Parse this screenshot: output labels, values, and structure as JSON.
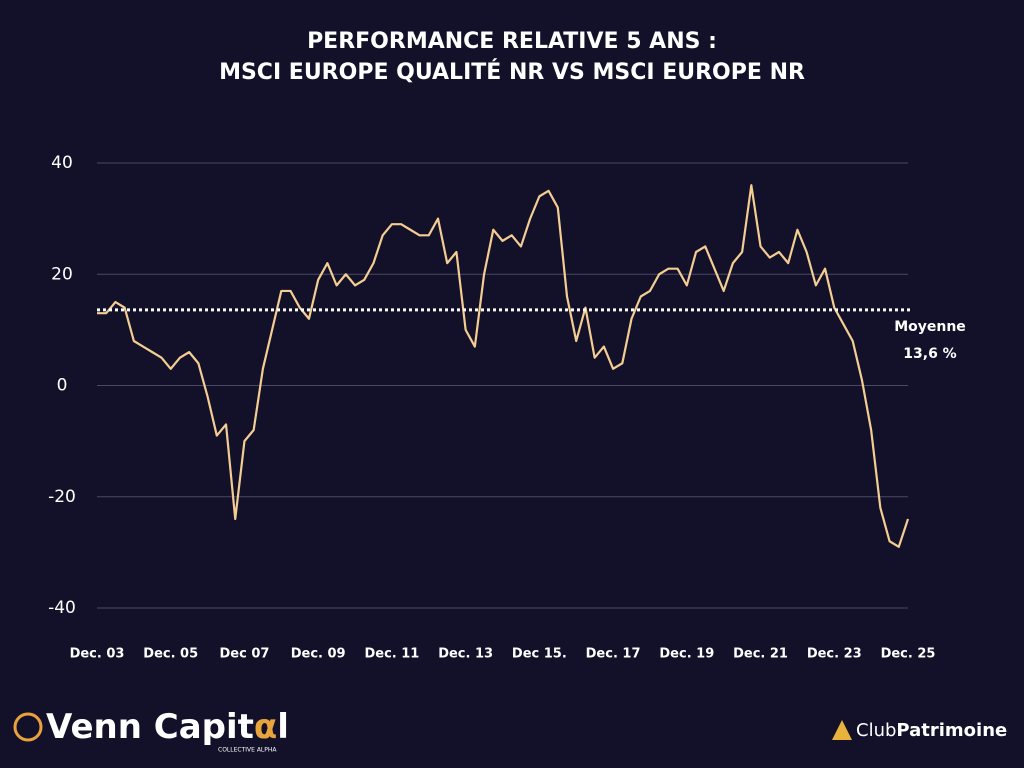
{
  "chart_data": {
    "type": "line",
    "title": [
      "PERFORMANCE RELATIVE 5 ANS :",
      "MSCI EUROPE QUALITÉ NR VS MSCI EUROPE NR"
    ],
    "categories": [
      "Dec. 03",
      null,
      null,
      null,
      null,
      null,
      null,
      null,
      "Dec. 05",
      null,
      null,
      null,
      null,
      null,
      null,
      null,
      "Dec 07",
      null,
      null,
      null,
      null,
      null,
      null,
      null,
      "Dec. 09",
      null,
      null,
      null,
      null,
      null,
      null,
      null,
      "Dec. 11",
      null,
      null,
      null,
      null,
      null,
      null,
      null,
      "Dec. 13",
      null,
      null,
      null,
      null,
      null,
      null,
      null,
      "Dec 15.",
      null,
      null,
      null,
      null,
      null,
      null,
      null,
      "Dec. 17",
      null,
      null,
      null,
      null,
      null,
      null,
      null,
      "Dec. 19",
      null,
      null,
      null,
      null,
      null,
      null,
      null,
      "Dec. 21",
      null,
      null,
      null,
      null,
      null,
      null,
      null,
      "Dec. 23",
      null,
      null,
      null,
      null,
      null,
      null,
      null,
      "Dec. 25"
    ],
    "values": [
      13,
      13,
      15,
      14,
      8,
      7,
      6,
      5,
      3,
      5,
      6,
      4,
      -2,
      -9,
      -7,
      -24,
      -10,
      -8,
      3,
      10,
      17,
      17,
      14,
      12,
      19,
      22,
      18,
      20,
      18,
      19,
      22,
      27,
      29,
      29,
      28,
      27,
      27,
      30,
      22,
      24,
      10,
      7,
      20,
      28,
      26,
      27,
      25,
      30,
      34,
      35,
      32,
      16,
      8,
      14,
      5,
      7,
      3,
      4,
      12,
      16,
      17,
      20,
      21,
      21,
      18,
      24,
      25,
      21,
      17,
      22,
      24,
      36,
      25,
      23,
      24,
      22,
      28,
      24,
      18,
      21,
      14,
      11,
      8,
      1,
      -8,
      -22,
      -28,
      -29,
      -24
    ],
    "color": "#f3cd92",
    "ylim": [
      -40,
      40
    ],
    "yticks": [
      40,
      20,
      0,
      -20,
      -40
    ],
    "grid": true,
    "mean": {
      "value": 13.6,
      "label": "Moyenne",
      "value_label": "13,6 %"
    }
  },
  "branding": {
    "left": {
      "name_start": "Venn Capit",
      "alpha": "α",
      "name_end": "l",
      "tagline": "COLLECTIVE ALPHA"
    },
    "right": {
      "club": "Club",
      "patrimoine": "Patrimoine"
    }
  }
}
